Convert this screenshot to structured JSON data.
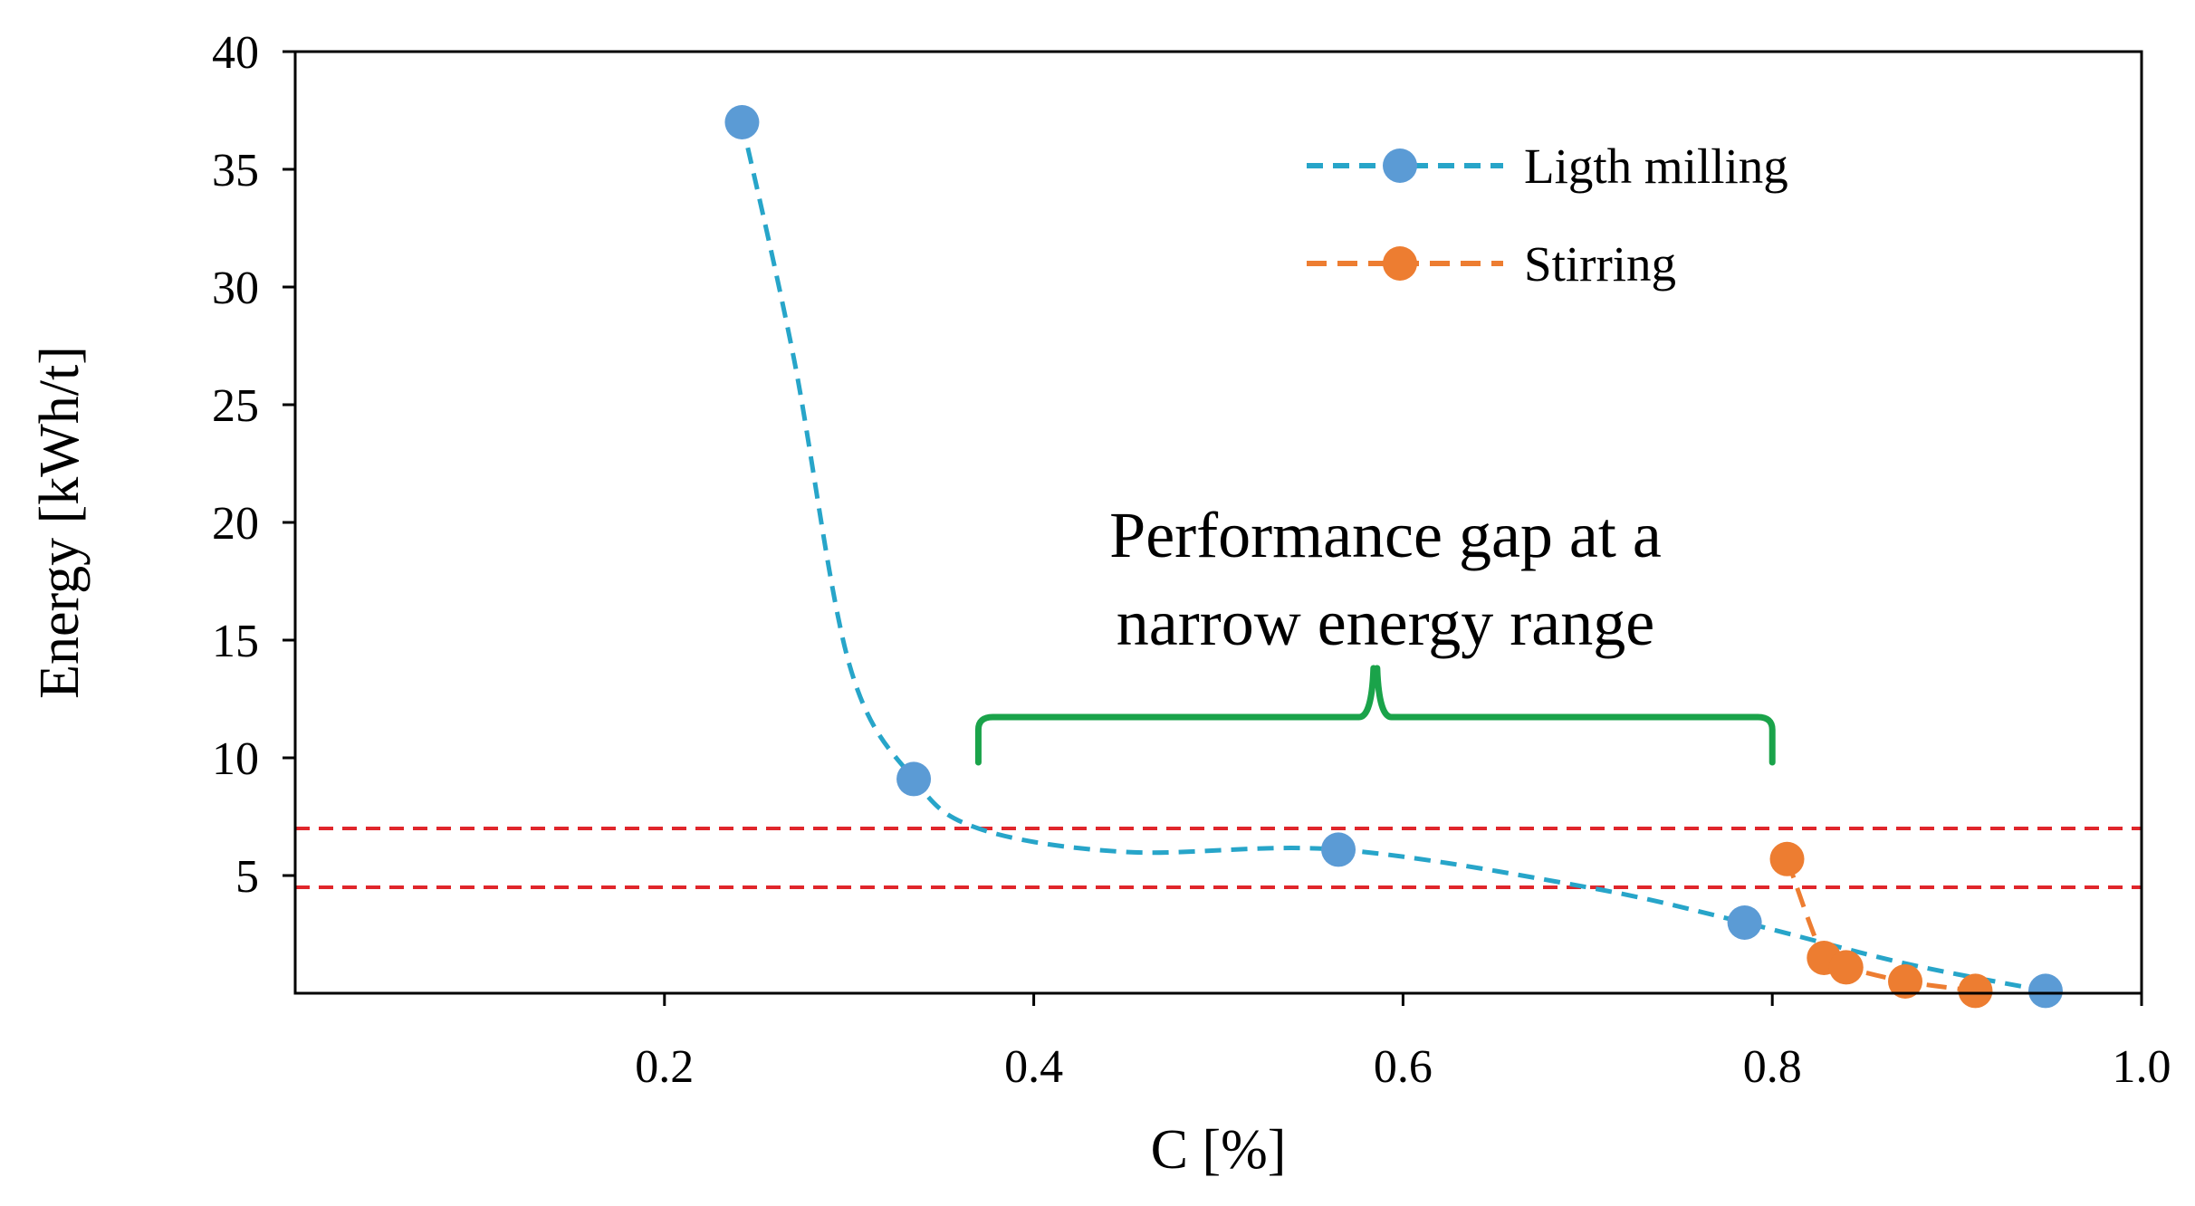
{
  "chart_data": {
    "type": "line",
    "xlabel": "C [%]",
    "ylabel": "Energy [kWh/t]",
    "xlim": [
      0,
      1.0
    ],
    "ylim": [
      0,
      40
    ],
    "x_ticks": [
      0.2,
      0.4,
      0.6,
      0.8,
      1.0
    ],
    "x_tick_labels": [
      "0.2",
      "0.4",
      "0.6",
      "0.8",
      "1.0"
    ],
    "y_ticks": [
      5,
      10,
      15,
      20,
      25,
      30,
      35,
      40
    ],
    "y_tick_labels": [
      "5",
      "10",
      "15",
      "20",
      "25",
      "30",
      "35",
      "40"
    ],
    "grid": false,
    "legend_position": "top-right",
    "series": [
      {
        "name": "Ligth milling",
        "color": "#5b9bd5",
        "line_color": "#27a5c9",
        "x": [
          0.242,
          0.335,
          0.565,
          0.785,
          0.948
        ],
        "y": [
          37.0,
          9.1,
          6.1,
          3.0,
          0.1
        ],
        "curve": [
          [
            0.242,
            37.0
          ],
          [
            0.27,
            27.0
          ],
          [
            0.3,
            14.0
          ],
          [
            0.335,
            9.1
          ],
          [
            0.37,
            7.0
          ],
          [
            0.45,
            6.0
          ],
          [
            0.565,
            6.1
          ],
          [
            0.7,
            4.5
          ],
          [
            0.785,
            3.0
          ],
          [
            0.87,
            1.3
          ],
          [
            0.948,
            0.1
          ]
        ]
      },
      {
        "name": "Stirring",
        "color": "#ed7d31",
        "line_color": "#ed7d31",
        "x": [
          0.808,
          0.828,
          0.84,
          0.872,
          0.91
        ],
        "y": [
          5.7,
          1.5,
          1.1,
          0.5,
          0.1
        ],
        "curve": [
          [
            0.808,
            5.7
          ],
          [
            0.828,
            1.5
          ],
          [
            0.84,
            1.1
          ],
          [
            0.872,
            0.5
          ],
          [
            0.91,
            0.1
          ]
        ]
      }
    ],
    "reference_lines": [
      {
        "y": 7.0,
        "color": "#e0262b"
      },
      {
        "y": 4.5,
        "color": "#e0262b"
      }
    ],
    "annotation": {
      "lines": [
        "Performance gap at a",
        "narrow energy range"
      ],
      "bracket_color": "#1aa34a",
      "bracket_x_range": [
        0.37,
        0.8
      ]
    }
  }
}
